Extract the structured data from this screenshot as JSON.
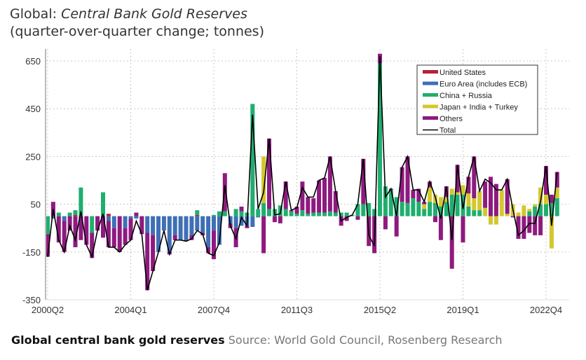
{
  "header": {
    "title_prefix": "Global: ",
    "title_italic": "Central Bank Gold Reserves",
    "subtitle": "(quarter-over-quarter change; tonnes)"
  },
  "caption": {
    "title": "Global central bank gold reserves",
    "source": "Source: World Gold Council, Rosenberg Research"
  },
  "chart_data": {
    "type": "bar",
    "stacked": true,
    "title": "Global: Central Bank Gold Reserves",
    "subtitle": "(quarter-over-quarter change; tonnes)",
    "ylim": [
      -350,
      650
    ],
    "yticks": [
      650,
      450,
      250,
      50,
      -150,
      -350
    ],
    "xticks": [
      "2000Q2",
      "2004Q1",
      "2007Q4",
      "2011Q3",
      "2015Q2",
      "2019Q1",
      "2022Q4"
    ],
    "first_quarter": "2000Q2",
    "grid": true,
    "legend_position": "top-right",
    "series": [
      {
        "name": "United States",
        "color": "#b5213a",
        "values": [
          0,
          0,
          0,
          0,
          0,
          5,
          0,
          0,
          0,
          0,
          0,
          10,
          0,
          0,
          0,
          0,
          0,
          0,
          0,
          0,
          0,
          0,
          0,
          0,
          0,
          0,
          0,
          5,
          0,
          0,
          0,
          0,
          0,
          0,
          0,
          0,
          0,
          0,
          0,
          0,
          0,
          0,
          0,
          0,
          0,
          0,
          0,
          0,
          0,
          0,
          0,
          0,
          0,
          0,
          0,
          0,
          0,
          0,
          0,
          0,
          0,
          0,
          0,
          0,
          0,
          0,
          0,
          0,
          0,
          0,
          0,
          0,
          0,
          0,
          0,
          0,
          0,
          0,
          0,
          0,
          0,
          0,
          0,
          0,
          0,
          0,
          0,
          0,
          0,
          0,
          0,
          0,
          0
        ]
      },
      {
        "name": "Euro Area (includes ECB)",
        "color": "#3f6fb5",
        "values": [
          0,
          -10,
          0,
          -20,
          0,
          0,
          0,
          0,
          0,
          0,
          0,
          -20,
          -50,
          0,
          -50,
          -10,
          -10,
          0,
          -70,
          -80,
          -150,
          -60,
          -150,
          -80,
          -100,
          -100,
          -80,
          -60,
          -70,
          -130,
          -60,
          -120,
          0,
          -30,
          -50,
          -40,
          -40,
          -45,
          -5,
          0,
          0,
          0,
          0,
          0,
          0,
          0,
          0,
          0,
          0,
          0,
          0,
          0,
          0,
          0,
          0,
          0,
          0,
          0,
          0,
          0,
          0,
          0,
          0,
          0,
          0,
          0,
          0,
          0,
          0,
          0,
          0,
          0,
          0,
          0,
          0,
          0,
          0,
          0,
          0,
          0,
          0,
          0,
          0,
          0,
          0,
          0,
          0,
          0,
          0,
          0,
          0,
          0,
          0
        ]
      },
      {
        "name": "China + Russia",
        "color": "#1fae6f",
        "values": [
          -75,
          0,
          15,
          0,
          15,
          20,
          120,
          0,
          -70,
          0,
          100,
          0,
          0,
          0,
          0,
          0,
          0,
          0,
          0,
          0,
          0,
          0,
          0,
          0,
          0,
          0,
          0,
          20,
          0,
          0,
          5,
          20,
          20,
          0,
          30,
          20,
          15,
          470,
          30,
          55,
          30,
          30,
          45,
          30,
          20,
          10,
          25,
          10,
          15,
          15,
          15,
          20,
          15,
          15,
          15,
          5,
          50,
          50,
          55,
          30,
          640,
          125,
          110,
          80,
          60,
          55,
          75,
          60,
          30,
          60,
          55,
          40,
          60,
          90,
          90,
          90,
          40,
          25,
          25,
          0,
          0,
          0,
          0,
          0,
          0,
          0,
          0,
          20,
          40,
          50,
          50,
          55,
          75
        ]
      },
      {
        "name": "Japan + India + Turkey",
        "color": "#d4c72d",
        "values": [
          0,
          0,
          0,
          0,
          0,
          0,
          0,
          0,
          0,
          0,
          0,
          0,
          0,
          0,
          0,
          0,
          0,
          0,
          0,
          0,
          0,
          0,
          0,
          0,
          0,
          0,
          0,
          0,
          0,
          0,
          0,
          0,
          0,
          0,
          0,
          0,
          0,
          0,
          0,
          195,
          0,
          0,
          0,
          0,
          0,
          0,
          0,
          0,
          0,
          0,
          0,
          0,
          0,
          0,
          0,
          0,
          0,
          0,
          0,
          0,
          0,
          0,
          0,
          0,
          0,
          0,
          0,
          0,
          20,
          60,
          35,
          40,
          20,
          25,
          10,
          40,
          55,
          50,
          80,
          35,
          -35,
          -35,
          110,
          10,
          50,
          15,
          45,
          10,
          10,
          70,
          40,
          -135,
          45
        ]
      },
      {
        "name": "Others",
        "color": "#8e1a7f",
        "values": [
          -95,
          60,
          -110,
          -130,
          -60,
          -130,
          -100,
          -120,
          -105,
          -60,
          -90,
          -110,
          -80,
          -150,
          -70,
          -90,
          15,
          -75,
          -240,
          -150,
          0,
          0,
          -10,
          -20,
          0,
          -5,
          -20,
          0,
          -10,
          -25,
          -120,
          0,
          160,
          -20,
          -80,
          20,
          -10,
          0,
          0,
          -155,
          295,
          -25,
          -30,
          115,
          5,
          30,
          120,
          70,
          60,
          135,
          145,
          230,
          90,
          -40,
          -20,
          0,
          -15,
          190,
          -125,
          -155,
          40,
          -55,
          5,
          -85,
          145,
          195,
          35,
          55,
          10,
          25,
          -25,
          -100,
          45,
          -220,
          115,
          -110,
          70,
          175,
          0,
          110,
          165,
          135,
          0,
          145,
          -5,
          -95,
          -95,
          -70,
          -80,
          -80,
          120,
          35,
          65
        ]
      }
    ],
    "total": {
      "name": "Total",
      "color": "#000000",
      "values": [
        -170,
        30,
        -100,
        -150,
        -40,
        -100,
        20,
        -120,
        -170,
        -60,
        10,
        -130,
        -130,
        -150,
        -120,
        -100,
        -20,
        -75,
        -310,
        -230,
        -150,
        -60,
        -160,
        -100,
        -100,
        -105,
        -95,
        -60,
        -75,
        -155,
        -165,
        -110,
        130,
        -40,
        -95,
        -5,
        -40,
        425,
        30,
        100,
        325,
        5,
        10,
        145,
        25,
        35,
        120,
        80,
        80,
        150,
        160,
        250,
        105,
        -20,
        -5,
        5,
        50,
        240,
        -80,
        -125,
        670,
        80,
        115,
        0,
        205,
        250,
        110,
        110,
        60,
        145,
        80,
        -10,
        125,
        -100,
        215,
        30,
        165,
        250,
        105,
        155,
        140,
        110,
        110,
        155,
        30,
        -80,
        -60,
        -30,
        -30,
        60,
        210,
        -40,
        185
      ]
    }
  }
}
